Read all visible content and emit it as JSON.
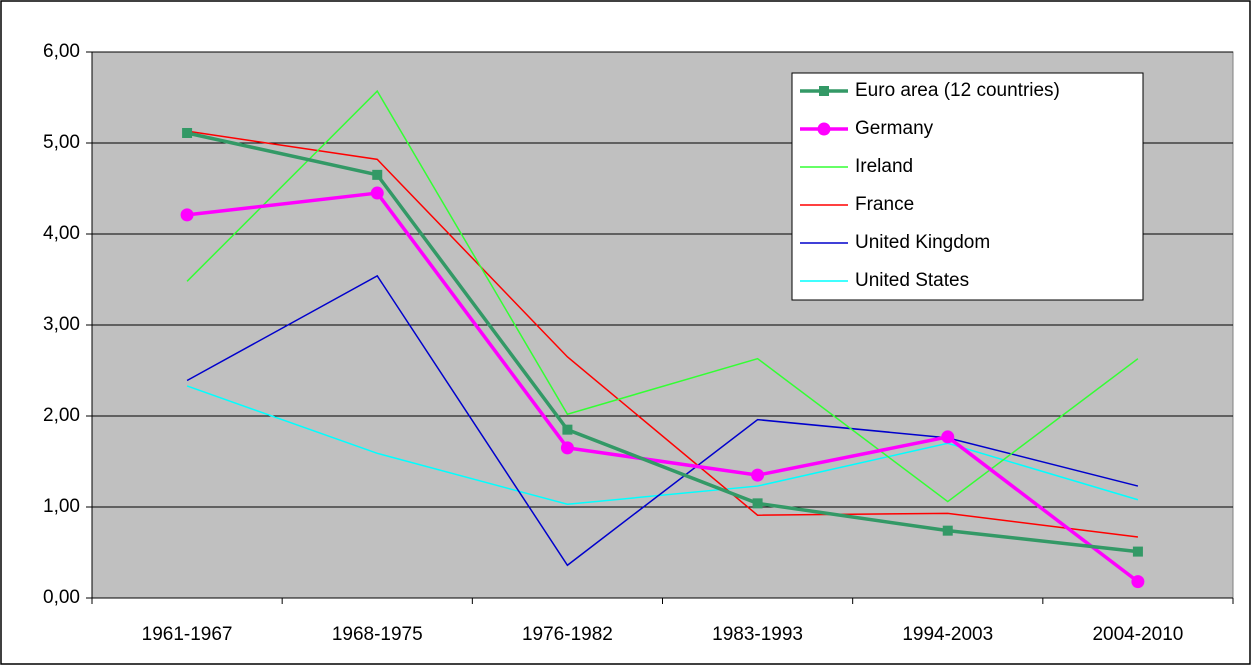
{
  "chart_data": {
    "type": "line",
    "categories": [
      "1961-1967",
      "1968-1975",
      "1976-1982",
      "1983-1993",
      "1994-2003",
      "2004-2010"
    ],
    "series": [
      {
        "name": "Euro area (12 countries)",
        "color": "#339966",
        "marker": "square",
        "values": [
          5.11,
          4.65,
          1.85,
          1.04,
          0.74,
          0.51
        ]
      },
      {
        "name": "Germany",
        "color": "#ff00ff",
        "marker": "circle",
        "values": [
          4.21,
          4.45,
          1.65,
          1.35,
          1.77,
          0.18
        ]
      },
      {
        "name": "Ireland",
        "color": "#33ff33",
        "values": [
          3.48,
          5.57,
          2.02,
          2.63,
          1.06,
          2.63
        ]
      },
      {
        "name": "France",
        "color": "#ff0000",
        "values": [
          5.13,
          4.82,
          2.65,
          0.91,
          0.93,
          0.67
        ]
      },
      {
        "name": "United Kingdom",
        "color": "#0000cc",
        "values": [
          2.39,
          3.54,
          0.36,
          1.96,
          1.76,
          1.23
        ]
      },
      {
        "name": "United States",
        "color": "#00ffff",
        "values": [
          2.33,
          1.59,
          1.03,
          1.23,
          1.7,
          1.08
        ]
      }
    ],
    "ylim": [
      0,
      6
    ],
    "yticks": [
      {
        "value": 0,
        "label": "0,00"
      },
      {
        "value": 1,
        "label": "1,00"
      },
      {
        "value": 2,
        "label": "2,00"
      },
      {
        "value": 3,
        "label": "3,00"
      },
      {
        "value": 4,
        "label": "4,00"
      },
      {
        "value": 5,
        "label": "5,00"
      },
      {
        "value": 6,
        "label": "6,00"
      }
    ],
    "grid": true,
    "background": "#c0c0c0",
    "legend": "top-right"
  }
}
